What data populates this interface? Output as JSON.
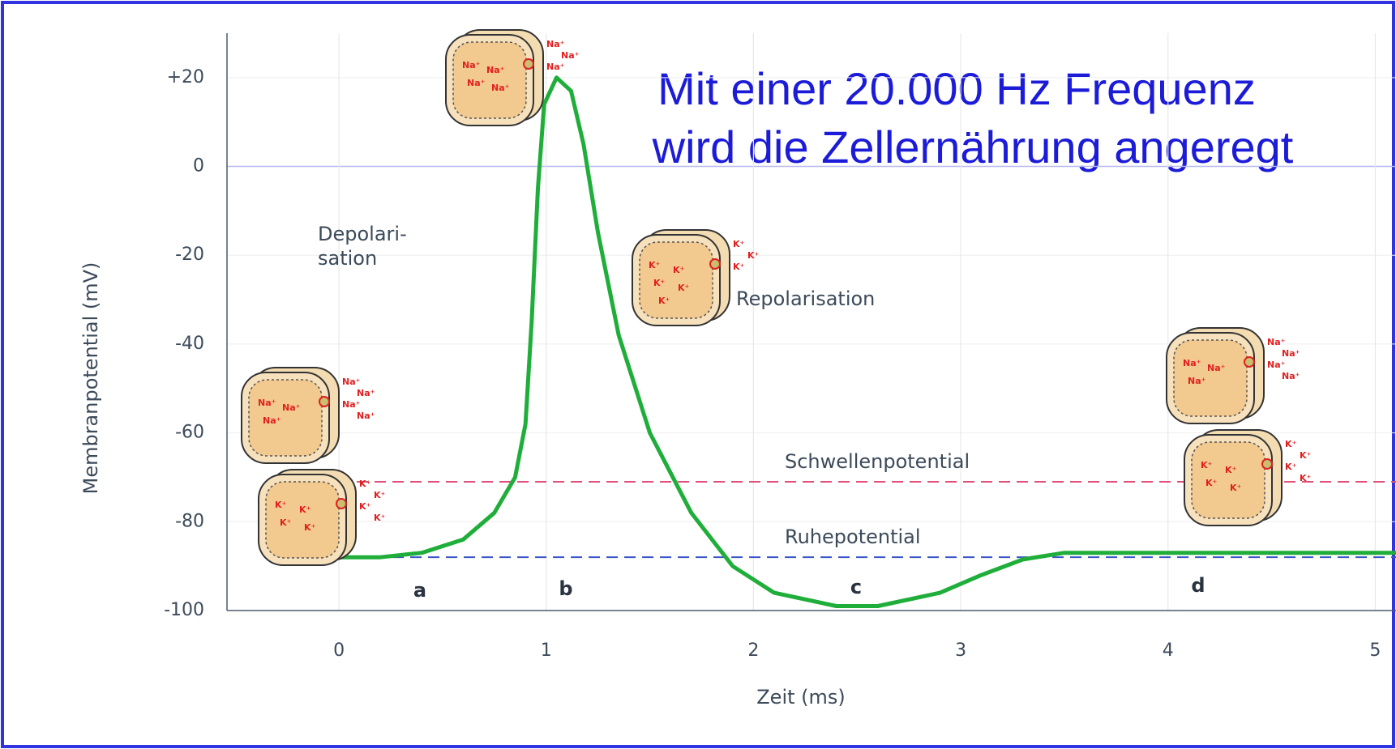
{
  "chart_data": {
    "type": "line",
    "title": [
      "Mit einer 20.000 Hz Frequenz",
      "wird die Zellernährung angeregt"
    ],
    "x_label": "Zeit (ms)",
    "y_label": "Membranpotential (mV)",
    "xlim": [
      -0.54,
      5.1
    ],
    "ylim": [
      -100,
      30
    ],
    "xticks": [
      0,
      1,
      2,
      3,
      4,
      5
    ],
    "yticks": [
      -100,
      -80,
      -60,
      -40,
      -20,
      0,
      {
        "value": 20,
        "label": "+20"
      }
    ],
    "grid": true,
    "series": [
      {
        "name": "Membranpotential",
        "color": "#1fae3a",
        "x": [
          0,
          0.2,
          0.4,
          0.6,
          0.75,
          0.85,
          0.9,
          0.93,
          0.96,
          0.99,
          1.05,
          1.12,
          1.18,
          1.25,
          1.35,
          1.5,
          1.7,
          1.9,
          2.1,
          2.4,
          2.6,
          2.9,
          3.1,
          3.3,
          3.5,
          4,
          4.5,
          5.1
        ],
        "values": [
          -88,
          -88,
          -87,
          -84,
          -78,
          -70,
          -58,
          -35,
          -5,
          14,
          20,
          17,
          5,
          -15,
          -38,
          -60,
          -78,
          -90,
          -96,
          -99,
          -99,
          -96,
          -92,
          -88.5,
          -87,
          -87,
          -87,
          -87
        ]
      }
    ],
    "reference_lines": [
      {
        "label": "Schwellenpotential",
        "value": -71,
        "color": "#e0507a"
      },
      {
        "label": "Ruhepotential",
        "value": -88,
        "color": "#3a56c8"
      }
    ],
    "annotations": [
      "Depolari-",
      "sation",
      "Repolarisation",
      "a",
      "b",
      "c",
      "d"
    ],
    "cells": [
      {
        "inside": [
          "Na⁺",
          "Na⁺",
          "Na⁺"
        ],
        "outside": [
          "Na⁺",
          "Na⁺",
          "Na⁺",
          "Na⁺"
        ]
      },
      {
        "inside": [
          "K⁺",
          "K⁺",
          "K⁺",
          "K⁺"
        ],
        "outside": [
          "K⁺",
          "K⁺",
          "K⁺",
          "K⁺"
        ]
      },
      {
        "inside": [
          "Na⁺",
          "Na⁺",
          "Na⁺",
          "Na⁺"
        ],
        "outside": [
          "Na⁺",
          "Na⁺",
          "Na⁺"
        ]
      },
      {
        "inside": [
          "K⁺",
          "K⁺",
          "K⁺",
          "K⁺",
          "K⁺"
        ],
        "outside": [
          "K⁺",
          "K⁺",
          "K⁺"
        ]
      },
      {
        "inside": [
          "Na⁺",
          "Na⁺",
          "Na⁺"
        ],
        "outside": [
          "Na⁺",
          "Na⁺",
          "Na⁺",
          "Na⁺"
        ]
      },
      {
        "inside": [
          "K⁺",
          "K⁺",
          "K⁺",
          "K⁺"
        ],
        "outside": [
          "K⁺",
          "K⁺",
          "K⁺",
          "K⁺"
        ]
      }
    ]
  }
}
